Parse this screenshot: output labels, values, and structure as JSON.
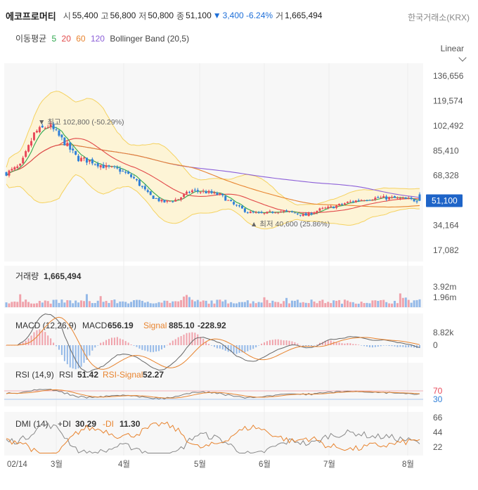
{
  "header": {
    "name": "에코프로머티",
    "open_label": "시",
    "open": "55,400",
    "high_label": "고",
    "high": "56,800",
    "low_label": "저",
    "low": "50,800",
    "close_label": "종",
    "close": "51,100",
    "change_arrow": "▼",
    "change": "3,400 -6.24%",
    "volume_label": "거",
    "volume": "1,665,494",
    "exchange": "한국거래소(KRX)"
  },
  "indicators": {
    "ma_label": "이동평균",
    "ma": [
      {
        "period": "5",
        "color": "#2fa84f"
      },
      {
        "period": "20",
        "color": "#e24a4a"
      },
      {
        "period": "60",
        "color": "#e8842f"
      },
      {
        "period": "120",
        "color": "#8c5fd8"
      }
    ],
    "bollinger": "Bollinger Band (20,5)"
  },
  "scale_mode": "Linear",
  "colors": {
    "up": "#e8495a",
    "down": "#2f7fd8",
    "band_fill": "#fdf4d6",
    "band_line": "#f5d260"
  },
  "chart_data": [
    {
      "type": "candlestick",
      "y_ticks": [
        "136,656",
        "119,574",
        "102,492",
        "85,410",
        "68,328",
        "51,100",
        "34,164",
        "17,082"
      ],
      "current_price": "51,100",
      "annotations": {
        "high": {
          "label": "▼ 최고 102,800 (-50.29%)",
          "value": 102800
        },
        "low": {
          "label": "▲ 최저 40,600 (25.86%)",
          "value": 40600
        }
      },
      "x_labels": [
        "02/14",
        "3월",
        "4월",
        "5월",
        "6월",
        "7월",
        "8월"
      ],
      "close_path": [
        70000,
        75000,
        98000,
        102800,
        92000,
        80000,
        78000,
        74000,
        72000,
        66000,
        55000,
        50000,
        52000,
        58000,
        57000,
        55000,
        48000,
        43000,
        42000,
        44000,
        43000,
        41000,
        45000,
        47000,
        50000,
        52000,
        53000,
        53000,
        52000,
        51100
      ],
      "ylim": [
        17082,
        136656
      ]
    },
    {
      "type": "bar",
      "title": "거래량",
      "value": "1,665,494",
      "y_ticks": [
        "3.92m",
        "1.96m"
      ]
    },
    {
      "type": "line",
      "title": "MACD (12,26,9)",
      "macd_label": "MACD",
      "macd": "656.19",
      "signal_label": "Signal",
      "signal": "885.10",
      "hist": "-228.92",
      "y_ticks": [
        "8.82k",
        "0"
      ]
    },
    {
      "type": "line",
      "title": "RSI (14,9)",
      "rsi_label": "RSI",
      "rsi": "51.42",
      "signal_label": "RSI-Signal",
      "signal": "52.27",
      "y_ticks": [
        "70",
        "30"
      ]
    },
    {
      "type": "line",
      "title": "DMI (14)",
      "pdi_label": "+DI",
      "pdi": "30.29",
      "mdi_label": "-DI",
      "mdi": "11.30",
      "y_ticks": [
        "66",
        "44",
        "22"
      ]
    }
  ]
}
